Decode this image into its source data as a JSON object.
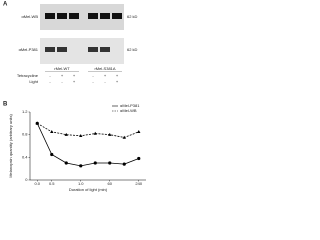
{
  "panel_a": {
    "label": "A",
    "blot_top_label": "αMel-WB",
    "blot_top_size": "62 kD",
    "blot_bottom_label": "αMel-P381",
    "blot_bottom_size": "62 kD",
    "groups": [
      "rMel-WT",
      "rMel-S381A"
    ],
    "rows": [
      {
        "name": "Tetracycline",
        "signs": [
          "-",
          "+",
          "+",
          "-",
          "+",
          "+"
        ]
      },
      {
        "name": "Light",
        "signs": [
          "-",
          "-",
          "+",
          "-",
          "-",
          "+"
        ]
      }
    ]
  },
  "chart_data": {
    "type": "line",
    "panel_label": "B",
    "x_label": "Duration of light (min)",
    "y_label": "Melanopsin quantity (arbitrary units)",
    "categories": [
      "0.0",
      "0.5",
      null,
      "1.0",
      null,
      "60",
      null,
      "240"
    ],
    "series": [
      {
        "name": "αMel-P381",
        "color": "#000000",
        "marker": "circle",
        "dash": false,
        "values": [
          1.0,
          0.45,
          0.3,
          0.25,
          0.3,
          0.3,
          0.28,
          0.38
        ]
      },
      {
        "name": "αMel-WB",
        "color": "#000000",
        "marker": "triangle",
        "dash": true,
        "values": [
          1.0,
          0.85,
          0.8,
          0.78,
          0.82,
          0.8,
          0.75,
          0.85
        ]
      }
    ],
    "ylim": [
      0,
      1.2
    ],
    "yticks": [
      0,
      0.4,
      0.8,
      1.2
    ],
    "legend": "top-right"
  }
}
